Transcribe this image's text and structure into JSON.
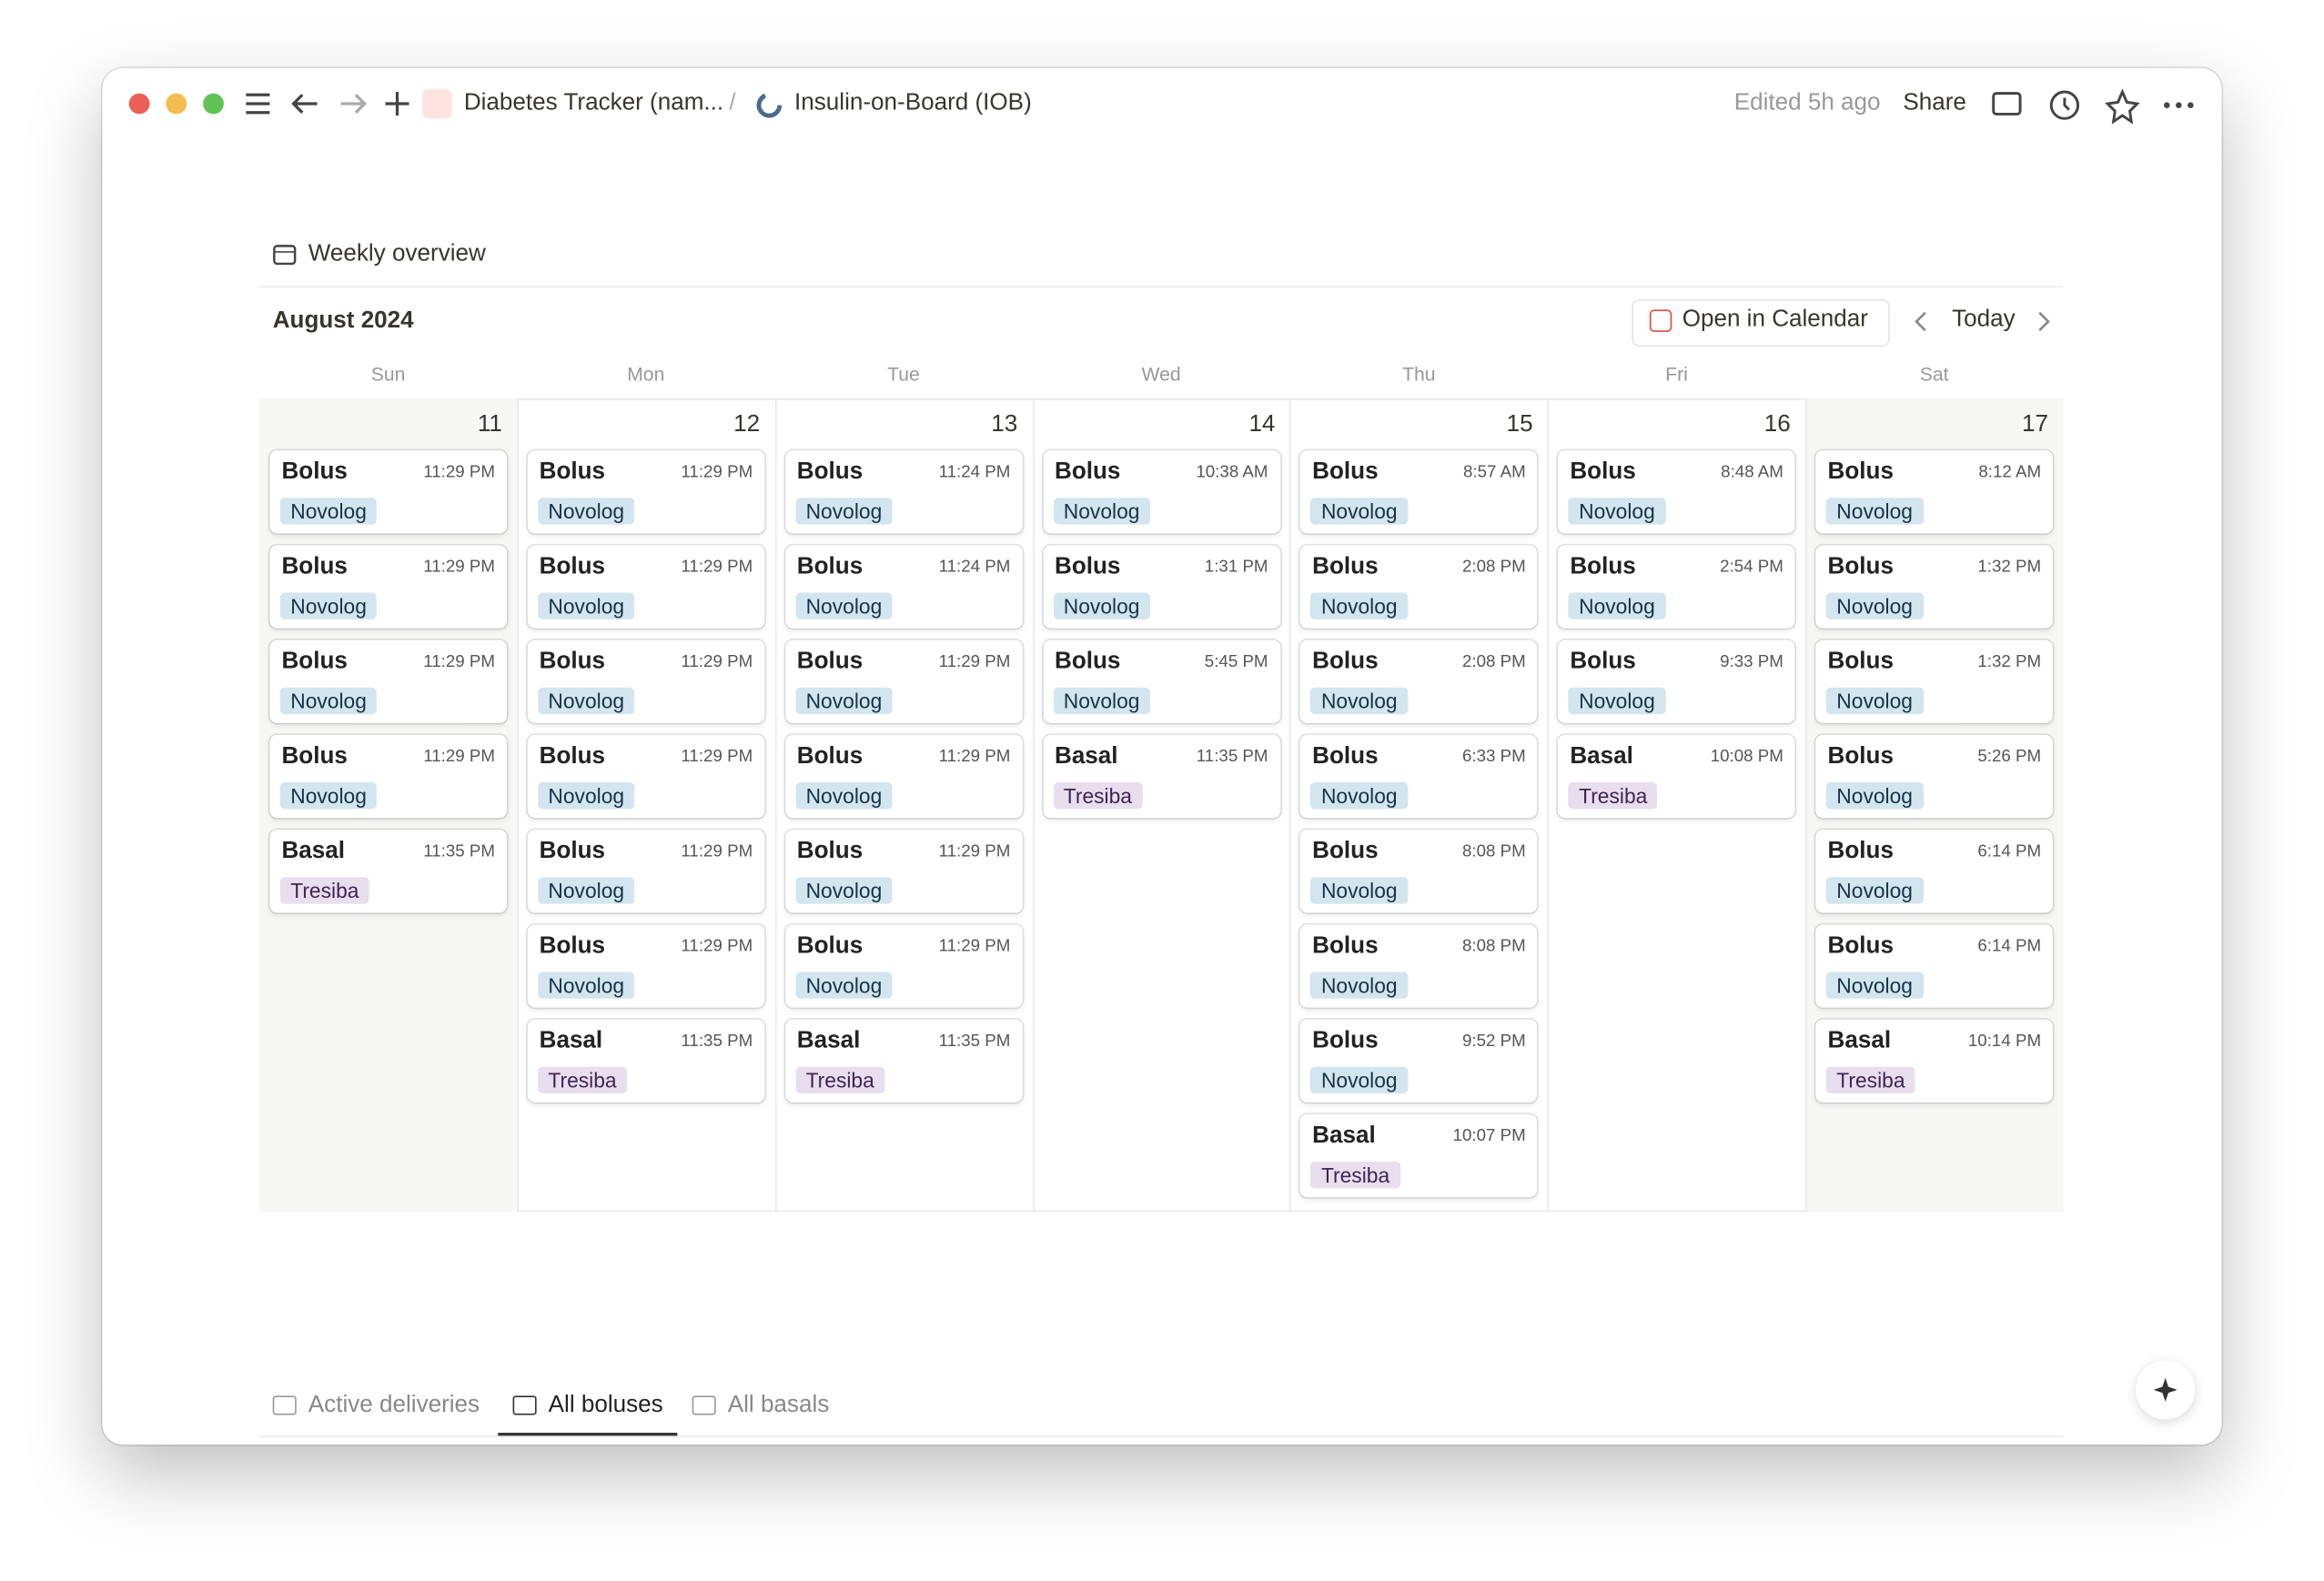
{
  "header": {
    "breadcrumbs": [
      "Diabetes Tracker (nam...",
      "/",
      "Insulin-on-Board (IOB)"
    ],
    "edited": "Edited 5h ago",
    "share": "Share"
  },
  "view": {
    "title": "Weekly overview",
    "month": "August 2024",
    "open_button": "Open in Calendar",
    "today": "Today",
    "weekdays": [
      "Sun",
      "Mon",
      "Tue",
      "Wed",
      "Thu",
      "Fri",
      "Sat"
    ],
    "days": [
      {
        "date": "11",
        "events": [
          {
            "title": "Bolus",
            "time": "11:29 PM",
            "tag": "Novolog"
          },
          {
            "title": "Bolus",
            "time": "11:29 PM",
            "tag": "Novolog"
          },
          {
            "title": "Bolus",
            "time": "11:29 PM",
            "tag": "Novolog"
          },
          {
            "title": "Bolus",
            "time": "11:29 PM",
            "tag": "Novolog"
          },
          {
            "title": "Basal",
            "time": "11:35 PM",
            "tag": "Tresiba"
          }
        ]
      },
      {
        "date": "12",
        "events": [
          {
            "title": "Bolus",
            "time": "11:29 PM",
            "tag": "Novolog"
          },
          {
            "title": "Bolus",
            "time": "11:29 PM",
            "tag": "Novolog"
          },
          {
            "title": "Bolus",
            "time": "11:29 PM",
            "tag": "Novolog"
          },
          {
            "title": "Bolus",
            "time": "11:29 PM",
            "tag": "Novolog"
          },
          {
            "title": "Bolus",
            "time": "11:29 PM",
            "tag": "Novolog"
          },
          {
            "title": "Bolus",
            "time": "11:29 PM",
            "tag": "Novolog"
          },
          {
            "title": "Basal",
            "time": "11:35 PM",
            "tag": "Tresiba"
          }
        ]
      },
      {
        "date": "13",
        "events": [
          {
            "title": "Bolus",
            "time": "11:24 PM",
            "tag": "Novolog"
          },
          {
            "title": "Bolus",
            "time": "11:24 PM",
            "tag": "Novolog"
          },
          {
            "title": "Bolus",
            "time": "11:29 PM",
            "tag": "Novolog"
          },
          {
            "title": "Bolus",
            "time": "11:29 PM",
            "tag": "Novolog"
          },
          {
            "title": "Bolus",
            "time": "11:29 PM",
            "tag": "Novolog"
          },
          {
            "title": "Bolus",
            "time": "11:29 PM",
            "tag": "Novolog"
          },
          {
            "title": "Basal",
            "time": "11:35 PM",
            "tag": "Tresiba"
          }
        ]
      },
      {
        "date": "14",
        "events": [
          {
            "title": "Bolus",
            "time": "10:38 AM",
            "tag": "Novolog"
          },
          {
            "title": "Bolus",
            "time": "1:31 PM",
            "tag": "Novolog"
          },
          {
            "title": "Bolus",
            "time": "5:45 PM",
            "tag": "Novolog"
          },
          {
            "title": "Basal",
            "time": "11:35 PM",
            "tag": "Tresiba"
          }
        ]
      },
      {
        "date": "15",
        "events": [
          {
            "title": "Bolus",
            "time": "8:57 AM",
            "tag": "Novolog"
          },
          {
            "title": "Bolus",
            "time": "2:08 PM",
            "tag": "Novolog"
          },
          {
            "title": "Bolus",
            "time": "2:08 PM",
            "tag": "Novolog"
          },
          {
            "title": "Bolus",
            "time": "6:33 PM",
            "tag": "Novolog"
          },
          {
            "title": "Bolus",
            "time": "8:08 PM",
            "tag": "Novolog"
          },
          {
            "title": "Bolus",
            "time": "8:08 PM",
            "tag": "Novolog"
          },
          {
            "title": "Bolus",
            "time": "9:52 PM",
            "tag": "Novolog"
          },
          {
            "title": "Basal",
            "time": "10:07 PM",
            "tag": "Tresiba"
          }
        ]
      },
      {
        "date": "16",
        "events": [
          {
            "title": "Bolus",
            "time": "8:48 AM",
            "tag": "Novolog"
          },
          {
            "title": "Bolus",
            "time": "2:54 PM",
            "tag": "Novolog"
          },
          {
            "title": "Bolus",
            "time": "9:33 PM",
            "tag": "Novolog"
          },
          {
            "title": "Basal",
            "time": "10:08 PM",
            "tag": "Tresiba"
          }
        ]
      },
      {
        "date": "17",
        "events": [
          {
            "title": "Bolus",
            "time": "8:12 AM",
            "tag": "Novolog"
          },
          {
            "title": "Bolus",
            "time": "1:32 PM",
            "tag": "Novolog"
          },
          {
            "title": "Bolus",
            "time": "1:32 PM",
            "tag": "Novolog"
          },
          {
            "title": "Bolus",
            "time": "5:26 PM",
            "tag": "Novolog"
          },
          {
            "title": "Bolus",
            "time": "6:14 PM",
            "tag": "Novolog"
          },
          {
            "title": "Bolus",
            "time": "6:14 PM",
            "tag": "Novolog"
          },
          {
            "title": "Basal",
            "time": "10:14 PM",
            "tag": "Tresiba"
          }
        ]
      }
    ]
  },
  "tabs": [
    "Active deliveries",
    "All boluses",
    "All basals"
  ]
}
